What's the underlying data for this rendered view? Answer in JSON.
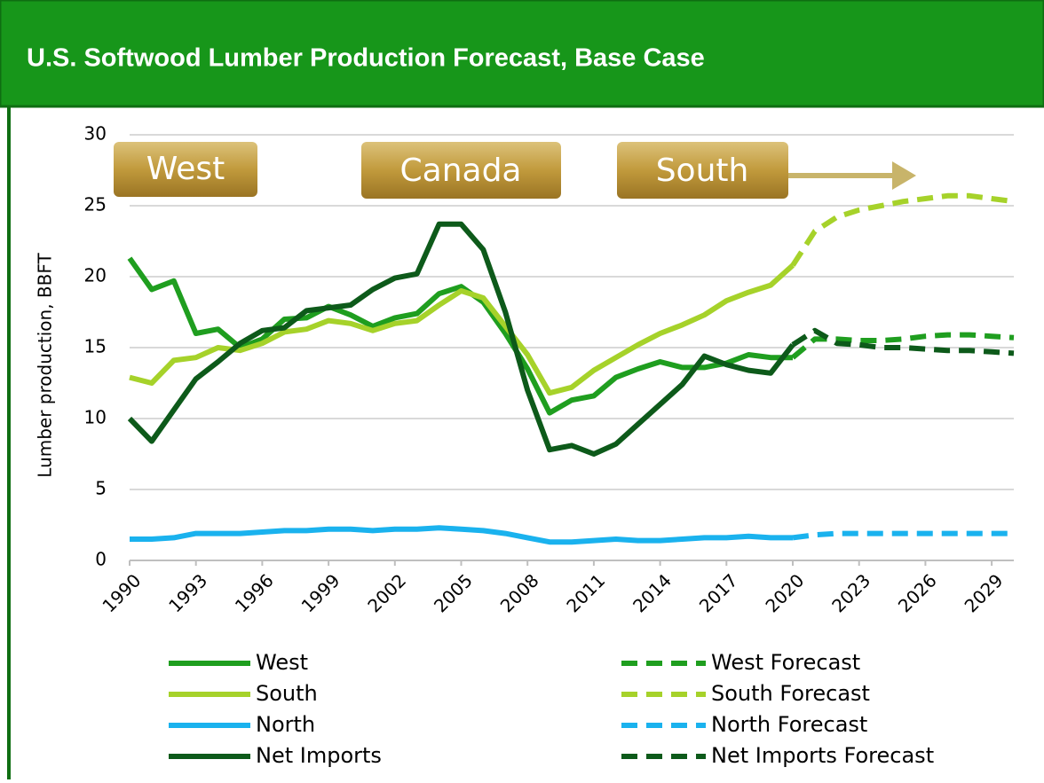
{
  "chart_data": {
    "type": "line",
    "title": "U.S. Softwood Lumber Production Forecast, Base Case",
    "y_label": "Lumber production, BBFT",
    "annotations": [
      "West",
      "Canada",
      "South"
    ],
    "x": [
      1990,
      1991,
      1992,
      1993,
      1994,
      1995,
      1996,
      1997,
      1998,
      1999,
      2000,
      2001,
      2002,
      2003,
      2004,
      2005,
      2006,
      2007,
      2008,
      2009,
      2010,
      2011,
      2012,
      2013,
      2014,
      2015,
      2016,
      2017,
      2018,
      2019,
      2020,
      2021,
      2022,
      2023,
      2024,
      2025,
      2026,
      2027,
      2028,
      2029,
      2030
    ],
    "xlim": [
      1990,
      2030
    ],
    "xticks": [
      1990,
      1993,
      1996,
      1999,
      2002,
      2005,
      2008,
      2011,
      2014,
      2017,
      2020,
      2023,
      2026,
      2029
    ],
    "ylim": [
      0,
      30
    ],
    "yticks": [
      0,
      5,
      10,
      15,
      20,
      25,
      30
    ],
    "grid": true,
    "series": [
      {
        "name": "West",
        "color": "#1f9e1f",
        "dashed": false,
        "values": [
          21.3,
          19.1,
          19.7,
          16.0,
          16.3,
          15.0,
          15.6,
          17.0,
          17.1,
          17.9,
          17.3,
          16.5,
          17.1,
          17.4,
          18.8,
          19.3,
          18.2,
          16.0,
          13.5,
          10.4,
          11.3,
          11.6,
          12.9,
          13.5,
          14.0,
          13.6,
          13.6,
          13.9,
          14.5,
          14.3,
          14.3,
          null,
          null,
          null,
          null,
          null,
          null,
          null,
          null,
          null,
          null
        ]
      },
      {
        "name": "South",
        "color": "#a6d22a",
        "dashed": false,
        "values": [
          12.9,
          12.5,
          14.1,
          14.3,
          15.0,
          14.8,
          15.3,
          16.1,
          16.3,
          16.9,
          16.7,
          16.2,
          16.7,
          16.9,
          18.0,
          19.0,
          18.5,
          16.5,
          14.5,
          11.8,
          12.2,
          13.4,
          14.3,
          15.2,
          16.0,
          16.6,
          17.3,
          18.3,
          18.9,
          19.4,
          20.8,
          null,
          null,
          null,
          null,
          null,
          null,
          null,
          null,
          null,
          null
        ]
      },
      {
        "name": "North",
        "color": "#1ab2ee",
        "dashed": false,
        "values": [
          1.5,
          1.5,
          1.6,
          1.9,
          1.9,
          1.9,
          2.0,
          2.1,
          2.1,
          2.2,
          2.2,
          2.1,
          2.2,
          2.2,
          2.3,
          2.2,
          2.1,
          1.9,
          1.6,
          1.3,
          1.3,
          1.4,
          1.5,
          1.4,
          1.4,
          1.5,
          1.6,
          1.6,
          1.7,
          1.6,
          1.6,
          null,
          null,
          null,
          null,
          null,
          null,
          null,
          null,
          null,
          null
        ]
      },
      {
        "name": "Net Imports",
        "color": "#0d5a1a",
        "dashed": false,
        "values": [
          10.0,
          8.4,
          10.6,
          12.8,
          14.0,
          15.3,
          16.2,
          16.4,
          17.6,
          17.8,
          18.0,
          19.1,
          19.9,
          20.2,
          23.7,
          23.7,
          21.9,
          17.5,
          12.0,
          7.8,
          8.1,
          7.5,
          8.2,
          9.6,
          11.0,
          12.4,
          14.4,
          13.8,
          13.4,
          13.2,
          15.2,
          null,
          null,
          null,
          null,
          null,
          null,
          null,
          null,
          null,
          null
        ]
      },
      {
        "name": "West Forecast",
        "color": "#1f9e1f",
        "dashed": true,
        "values": [
          null,
          null,
          null,
          null,
          null,
          null,
          null,
          null,
          null,
          null,
          null,
          null,
          null,
          null,
          null,
          null,
          null,
          null,
          null,
          null,
          null,
          null,
          null,
          null,
          null,
          null,
          null,
          null,
          null,
          null,
          14.3,
          15.6,
          15.6,
          15.5,
          15.5,
          15.6,
          15.8,
          15.9,
          15.9,
          15.8,
          15.7
        ]
      },
      {
        "name": "South Forecast",
        "color": "#a6d22a",
        "dashed": true,
        "values": [
          null,
          null,
          null,
          null,
          null,
          null,
          null,
          null,
          null,
          null,
          null,
          null,
          null,
          null,
          null,
          null,
          null,
          null,
          null,
          null,
          null,
          null,
          null,
          null,
          null,
          null,
          null,
          null,
          null,
          null,
          20.8,
          23.2,
          24.2,
          24.7,
          25.0,
          25.3,
          25.5,
          25.7,
          25.7,
          25.5,
          25.3
        ]
      },
      {
        "name": "North Forecast",
        "color": "#1ab2ee",
        "dashed": true,
        "values": [
          null,
          null,
          null,
          null,
          null,
          null,
          null,
          null,
          null,
          null,
          null,
          null,
          null,
          null,
          null,
          null,
          null,
          null,
          null,
          null,
          null,
          null,
          null,
          null,
          null,
          null,
          null,
          null,
          null,
          null,
          1.6,
          1.8,
          1.9,
          1.9,
          1.9,
          1.9,
          1.9,
          1.9,
          1.9,
          1.9,
          1.9
        ]
      },
      {
        "name": "Net Imports Forecast",
        "color": "#0d5a1a",
        "dashed": true,
        "values": [
          null,
          null,
          null,
          null,
          null,
          null,
          null,
          null,
          null,
          null,
          null,
          null,
          null,
          null,
          null,
          null,
          null,
          null,
          null,
          null,
          null,
          null,
          null,
          null,
          null,
          null,
          null,
          null,
          null,
          null,
          15.2,
          16.2,
          15.3,
          15.2,
          15.0,
          15.0,
          14.9,
          14.8,
          14.8,
          14.7,
          14.6
        ]
      }
    ]
  }
}
